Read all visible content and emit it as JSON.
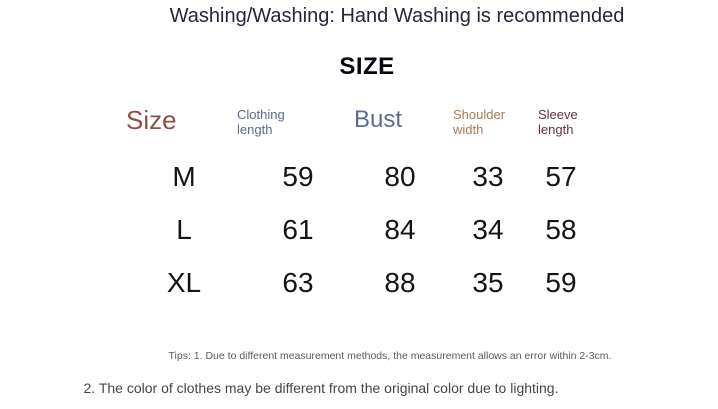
{
  "page": {
    "title": "Washing/Washing: Hand Washing is recommended"
  },
  "size_chart": {
    "heading": "SIZE",
    "columns": [
      {
        "label": "Size"
      },
      {
        "label": "Clothing length"
      },
      {
        "label": "Bust"
      },
      {
        "label": "Shoulder width"
      },
      {
        "label": "Sleeve length"
      }
    ],
    "rows": [
      {
        "size": "M",
        "clothing_length": "59",
        "bust": "80",
        "shoulder_width": "33",
        "sleeve_length": "57"
      },
      {
        "size": "L",
        "clothing_length": "61",
        "bust": "84",
        "shoulder_width": "34",
        "sleeve_length": "58"
      },
      {
        "size": "XL",
        "clothing_length": "63",
        "bust": "88",
        "shoulder_width": "35",
        "sleeve_length": "59"
      }
    ]
  },
  "notes": {
    "tip_1": "Tips: 1. Due to different measurement methods, the measurement allows an error within 2-3cm.",
    "tip_2": "2. The color of clothes may be different from the original color due to lighting."
  },
  "colors": {
    "title": "#23263f",
    "heading": "#05050f",
    "col_size": "#8e5143",
    "col_clothing_length": "#5c6a85",
    "col_bust": "#5e6a92",
    "col_shoulder_width": "#a87a58",
    "col_sleeve_length": "#67303c",
    "data_text": "#141414",
    "tip_small": "#5a5a5a",
    "tip_large": "#454545"
  }
}
